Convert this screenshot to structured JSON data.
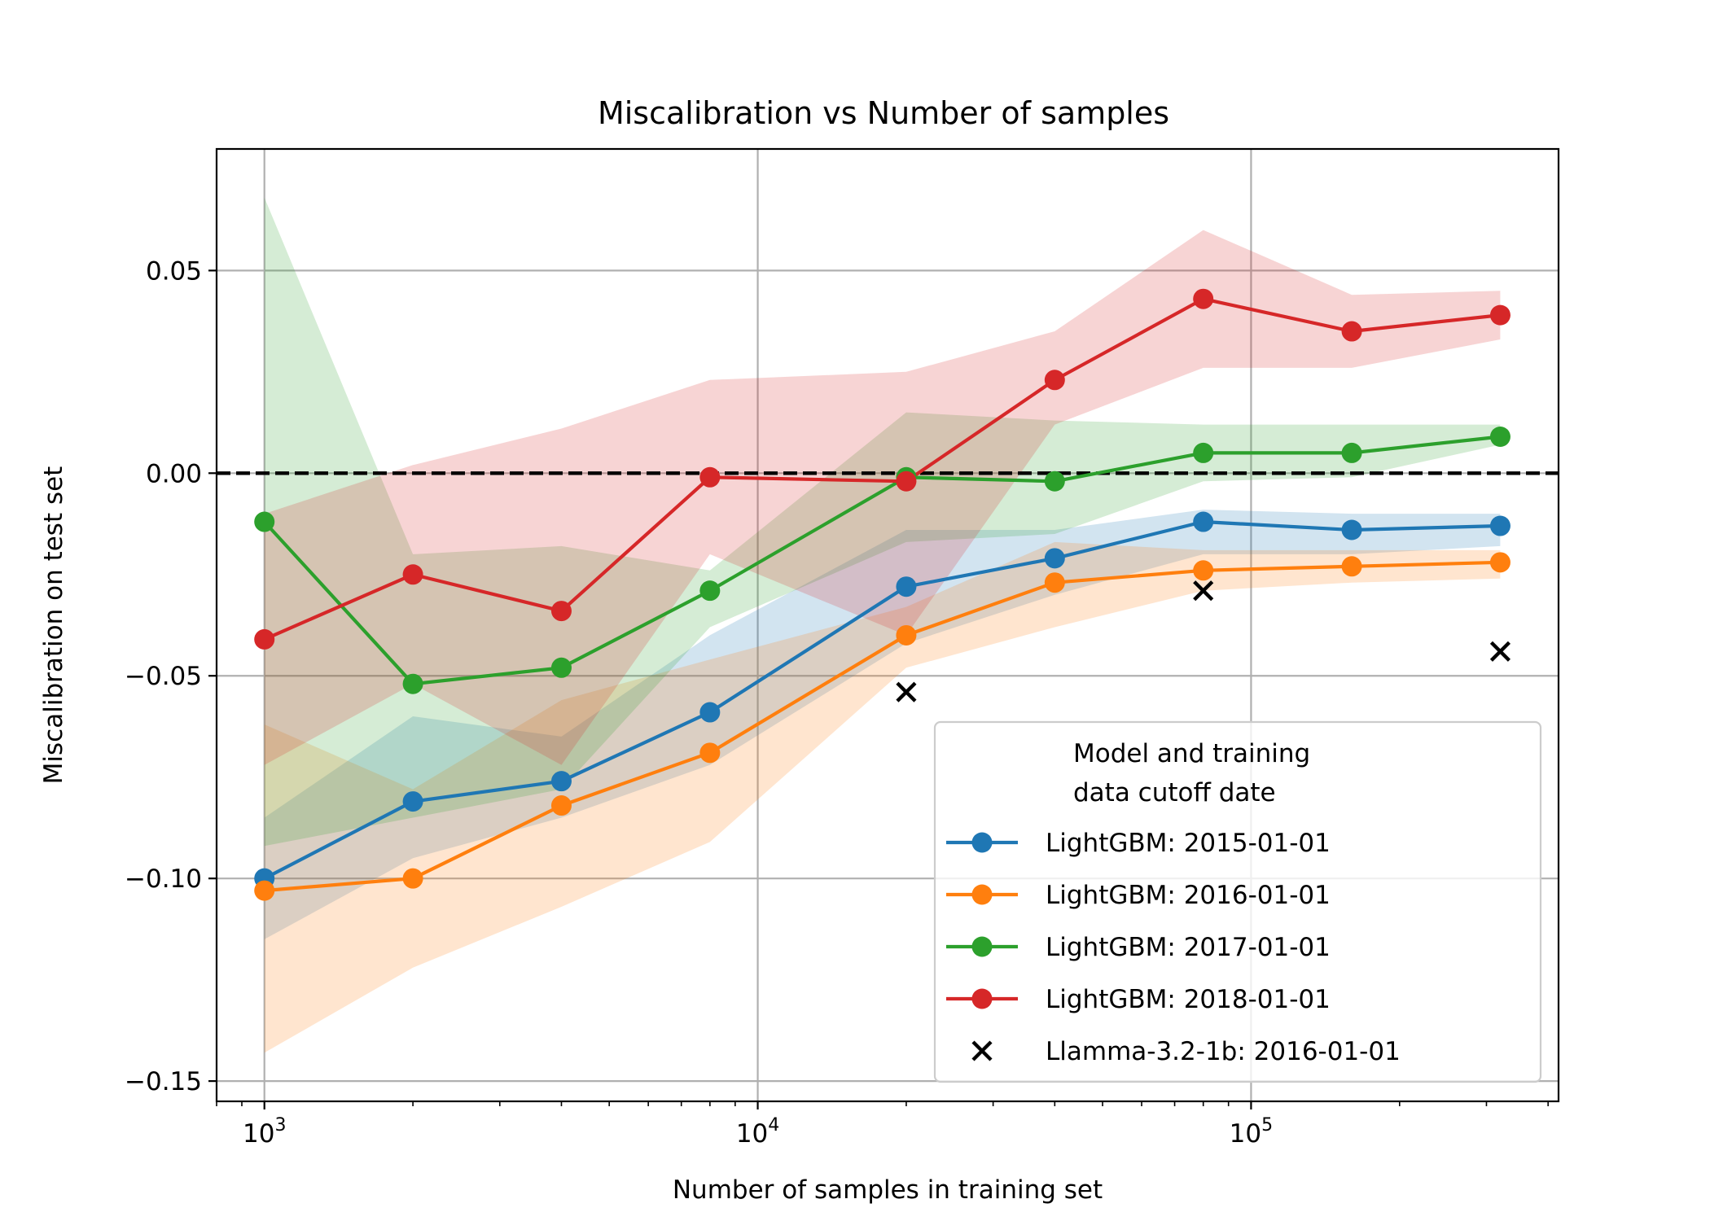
{
  "chart_data": {
    "type": "line",
    "title": "Miscalibration vs Number of samples",
    "xlabel": "Number of samples in training set",
    "ylabel": "Miscalibration on test set",
    "xscale": "log",
    "xlim": [
      800,
      420000
    ],
    "ylim": [
      -0.155,
      0.08
    ],
    "grid": true,
    "legend_placement": "lower-right",
    "xticks": [
      {
        "value": 1000,
        "base": "10",
        "exp": "3"
      },
      {
        "value": 10000,
        "base": "10",
        "exp": "4"
      },
      {
        "value": 100000,
        "base": "10",
        "exp": "5"
      }
    ],
    "yticks": [
      {
        "value": 0.05,
        "label": "0.05"
      },
      {
        "value": 0.0,
        "label": "0.00"
      },
      {
        "value": -0.05,
        "label": "−0.05"
      },
      {
        "value": -0.1,
        "label": "−0.10"
      },
      {
        "value": -0.15,
        "label": "−0.15"
      }
    ],
    "reference_line": {
      "y": 0.0,
      "style": "dashed",
      "color": "#000000"
    },
    "legend_title": [
      "Model and training",
      "data cutoff date"
    ],
    "series": [
      {
        "name": "LightGBM: 2015-01-01",
        "color": "#1f77b4",
        "x": [
          1000,
          2000,
          4000,
          8000,
          20000,
          40000,
          80000,
          160000,
          320000
        ],
        "y": [
          -0.1,
          -0.081,
          -0.076,
          -0.059,
          -0.028,
          -0.021,
          -0.012,
          -0.014,
          -0.013
        ],
        "lower": [
          -0.115,
          -0.095,
          -0.085,
          -0.072,
          -0.042,
          -0.03,
          -0.02,
          -0.02,
          -0.018
        ],
        "upper": [
          -0.085,
          -0.06,
          -0.065,
          -0.04,
          -0.014,
          -0.014,
          -0.009,
          -0.01,
          -0.01
        ]
      },
      {
        "name": "LightGBM: 2016-01-01",
        "color": "#ff7f0e",
        "x": [
          1000,
          2000,
          4000,
          8000,
          20000,
          40000,
          80000,
          160000,
          320000
        ],
        "y": [
          -0.103,
          -0.1,
          -0.082,
          -0.069,
          -0.04,
          -0.027,
          -0.024,
          -0.023,
          -0.022
        ],
        "lower": [
          -0.143,
          -0.122,
          -0.107,
          -0.091,
          -0.048,
          -0.038,
          -0.029,
          -0.027,
          -0.026
        ],
        "upper": [
          -0.062,
          -0.078,
          -0.056,
          -0.046,
          -0.033,
          -0.017,
          -0.019,
          -0.019,
          -0.019
        ]
      },
      {
        "name": "LightGBM: 2017-01-01",
        "color": "#2ca02c",
        "x": [
          1000,
          2000,
          4000,
          8000,
          20000,
          40000,
          80000,
          160000,
          320000
        ],
        "y": [
          -0.012,
          -0.052,
          -0.048,
          -0.029,
          -0.001,
          -0.002,
          0.005,
          0.005,
          0.009
        ],
        "lower": [
          -0.092,
          -0.085,
          -0.078,
          -0.038,
          -0.017,
          -0.015,
          -0.002,
          -0.001,
          0.007
        ],
        "upper": [
          0.068,
          -0.02,
          -0.018,
          -0.024,
          0.015,
          0.013,
          0.012,
          0.012,
          0.012
        ]
      },
      {
        "name": "LightGBM: 2018-01-01",
        "color": "#d62728",
        "x": [
          1000,
          2000,
          4000,
          8000,
          20000,
          40000,
          80000,
          160000,
          320000
        ],
        "y": [
          -0.041,
          -0.025,
          -0.034,
          -0.001,
          -0.002,
          0.023,
          0.043,
          0.035,
          0.039
        ],
        "lower": [
          -0.072,
          -0.052,
          -0.072,
          -0.02,
          -0.04,
          0.012,
          0.026,
          0.026,
          0.033
        ],
        "upper": [
          -0.01,
          0.002,
          0.011,
          0.023,
          0.025,
          0.035,
          0.06,
          0.044,
          0.045
        ]
      }
    ],
    "scatter": {
      "name": "Llamma-3.2-1b: 2016-01-01",
      "color": "#000000",
      "marker": "x",
      "x": [
        20000,
        80000,
        320000
      ],
      "y": [
        -0.054,
        -0.029,
        -0.044
      ]
    }
  }
}
